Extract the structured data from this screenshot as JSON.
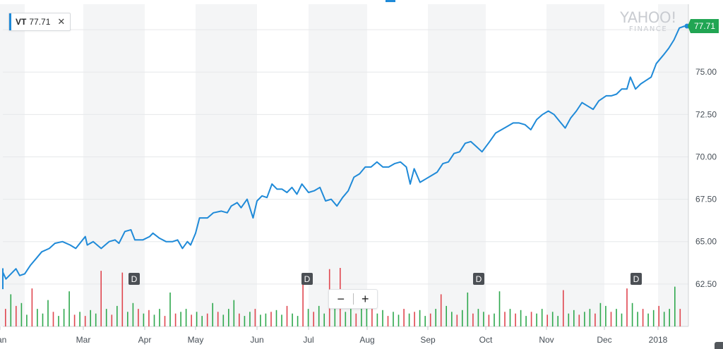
{
  "tooltip": {
    "symbol": "VT",
    "price": "77.71",
    "close_icon": "close-icon"
  },
  "logo": {
    "line1": "YAHOO!",
    "line2": "FINANCE"
  },
  "zoom": {
    "minus": "−",
    "plus": "+"
  },
  "colors": {
    "line": "#1f8ad8",
    "up": "#2ea84d",
    "down": "#e0464f",
    "band": "#f4f5f6",
    "grid": "#e6e8ea",
    "price_tag": "#21a553",
    "dividend": "#4b4f54"
  },
  "chart_data": {
    "type": "line",
    "series": [
      {
        "name": "VT",
        "last": 77.71
      }
    ],
    "ylim": [
      60.0,
      79.0
    ],
    "y_ticks": [
      62.5,
      65.0,
      67.5,
      70.0,
      72.5,
      75.0,
      77.71
    ],
    "y_tick_labels": [
      "62.50",
      "65.00",
      "67.50",
      "70.00",
      "72.50",
      "75.00",
      "77.71"
    ],
    "x_tick_labels": [
      "Jan",
      "Mar",
      "Apr",
      "May",
      "Jun",
      "Jul",
      "Aug",
      "Sep",
      "Oct",
      "Nov",
      "Dec",
      "2018"
    ],
    "dividend_markers": [
      "D",
      "D",
      "D",
      "D"
    ],
    "price_points": [
      [
        "01-03",
        62.2
      ],
      [
        "01-05",
        62.4
      ],
      [
        "01-10",
        63.4
      ],
      [
        "01-14",
        63.2
      ],
      [
        "01-17",
        62.8
      ],
      [
        "01-21",
        63.1
      ],
      [
        "01-25",
        63.4
      ],
      [
        "01-28",
        63.0
      ],
      [
        "02-01",
        63.1
      ],
      [
        "02-04",
        63.6
      ],
      [
        "02-07",
        64.0
      ],
      [
        "02-10",
        64.4
      ],
      [
        "02-14",
        64.6
      ],
      [
        "02-17",
        64.9
      ],
      [
        "02-21",
        65.0
      ],
      [
        "02-25",
        64.8
      ],
      [
        "02-28",
        64.6
      ],
      [
        "03-02",
        65.3
      ],
      [
        "03-03",
        64.8
      ],
      [
        "03-06",
        65.0
      ],
      [
        "03-10",
        64.6
      ],
      [
        "03-14",
        65.0
      ],
      [
        "03-17",
        65.1
      ],
      [
        "03-19",
        64.9
      ],
      [
        "03-22",
        65.6
      ],
      [
        "03-25",
        65.7
      ],
      [
        "03-27",
        65.1
      ],
      [
        "03-31",
        65.1
      ],
      [
        "04-04",
        65.3
      ],
      [
        "04-06",
        65.5
      ],
      [
        "04-10",
        65.2
      ],
      [
        "04-14",
        65.0
      ],
      [
        "04-18",
        65.0
      ],
      [
        "04-21",
        65.1
      ],
      [
        "04-24",
        64.6
      ],
      [
        "04-27",
        65.0
      ],
      [
        "04-29",
        64.8
      ],
      [
        "05-01",
        65.5
      ],
      [
        "05-03",
        66.4
      ],
      [
        "05-07",
        66.4
      ],
      [
        "05-10",
        66.7
      ],
      [
        "05-14",
        66.8
      ],
      [
        "05-17",
        66.7
      ],
      [
        "05-19",
        67.1
      ],
      [
        "05-22",
        67.3
      ],
      [
        "05-24",
        67.0
      ],
      [
        "05-27",
        67.5
      ],
      [
        "05-30",
        66.4
      ],
      [
        "06-01",
        67.4
      ],
      [
        "06-04",
        67.7
      ],
      [
        "06-07",
        67.6
      ],
      [
        "06-10",
        68.4
      ],
      [
        "06-13",
        68.1
      ],
      [
        "06-16",
        68.1
      ],
      [
        "06-19",
        67.9
      ],
      [
        "06-22",
        68.2
      ],
      [
        "06-25",
        67.8
      ],
      [
        "06-28",
        68.4
      ],
      [
        "07-01",
        67.9
      ],
      [
        "07-04",
        68.0
      ],
      [
        "07-07",
        68.2
      ],
      [
        "07-10",
        67.4
      ],
      [
        "07-13",
        67.5
      ],
      [
        "07-16",
        67.1
      ],
      [
        "07-19",
        67.6
      ],
      [
        "07-22",
        68.0
      ],
      [
        "07-25",
        68.8
      ],
      [
        "07-28",
        69.0
      ],
      [
        "07-31",
        69.4
      ],
      [
        "08-03",
        69.4
      ],
      [
        "08-06",
        69.7
      ],
      [
        "08-09",
        69.4
      ],
      [
        "08-12",
        69.4
      ],
      [
        "08-15",
        69.6
      ],
      [
        "08-18",
        69.7
      ],
      [
        "08-21",
        69.4
      ],
      [
        "08-23",
        68.4
      ],
      [
        "08-25",
        69.3
      ],
      [
        "08-28",
        68.5
      ],
      [
        "08-31",
        68.7
      ],
      [
        "09-03",
        68.9
      ],
      [
        "09-06",
        69.1
      ],
      [
        "09-09",
        69.6
      ],
      [
        "09-12",
        69.7
      ],
      [
        "09-15",
        70.2
      ],
      [
        "09-18",
        70.3
      ],
      [
        "09-21",
        70.8
      ],
      [
        "09-24",
        70.9
      ],
      [
        "09-27",
        70.6
      ],
      [
        "09-30",
        70.3
      ],
      [
        "10-03",
        70.9
      ],
      [
        "10-06",
        71.4
      ],
      [
        "10-09",
        71.6
      ],
      [
        "10-12",
        71.8
      ],
      [
        "10-15",
        72.0
      ],
      [
        "10-18",
        72.0
      ],
      [
        "10-21",
        71.9
      ],
      [
        "10-24",
        71.6
      ],
      [
        "10-27",
        72.2
      ],
      [
        "10-30",
        72.5
      ],
      [
        "11-02",
        72.7
      ],
      [
        "11-05",
        72.5
      ],
      [
        "11-08",
        72.1
      ],
      [
        "11-11",
        71.7
      ],
      [
        "11-14",
        72.3
      ],
      [
        "11-17",
        72.7
      ],
      [
        "11-20",
        73.2
      ],
      [
        "11-23",
        73.0
      ],
      [
        "11-26",
        72.8
      ],
      [
        "11-29",
        73.3
      ],
      [
        "12-02",
        73.6
      ],
      [
        "12-05",
        73.6
      ],
      [
        "12-08",
        73.7
      ],
      [
        "12-11",
        74.0
      ],
      [
        "12-14",
        74.0
      ],
      [
        "12-16",
        74.7
      ],
      [
        "12-19",
        74.0
      ],
      [
        "12-22",
        74.3
      ],
      [
        "12-25",
        74.5
      ],
      [
        "12-28",
        74.7
      ],
      [
        "12-31",
        75.5
      ],
      [
        "01-04",
        76.0
      ],
      [
        "01-07",
        76.4
      ],
      [
        "01-10",
        76.9
      ],
      [
        "01-13",
        77.6
      ],
      [
        "01-16",
        77.71
      ]
    ],
    "volume_bars": [
      {
        "up": false,
        "v": 0.3
      },
      {
        "up": true,
        "v": 0.55
      },
      {
        "up": false,
        "v": 0.35
      },
      {
        "up": true,
        "v": 0.4
      },
      {
        "up": true,
        "v": 0.2
      },
      {
        "up": false,
        "v": 0.65
      },
      {
        "up": true,
        "v": 0.3
      },
      {
        "up": true,
        "v": 0.22
      },
      {
        "up": true,
        "v": 0.45
      },
      {
        "up": false,
        "v": 0.25
      },
      {
        "up": true,
        "v": 0.18
      },
      {
        "up": true,
        "v": 0.3
      },
      {
        "up": true,
        "v": 0.6
      },
      {
        "up": false,
        "v": 0.2
      },
      {
        "up": true,
        "v": 0.25
      },
      {
        "up": false,
        "v": 0.18
      },
      {
        "up": true,
        "v": 0.28
      },
      {
        "up": true,
        "v": 0.22
      },
      {
        "up": false,
        "v": 0.95
      },
      {
        "up": true,
        "v": 0.3
      },
      {
        "up": false,
        "v": 0.2
      },
      {
        "up": true,
        "v": 0.35
      },
      {
        "up": false,
        "v": 0.92
      },
      {
        "up": true,
        "v": 0.25
      },
      {
        "up": true,
        "v": 0.4
      },
      {
        "up": false,
        "v": 0.3
      },
      {
        "up": true,
        "v": 0.22
      },
      {
        "up": false,
        "v": 0.28
      },
      {
        "up": true,
        "v": 0.2
      },
      {
        "up": true,
        "v": 0.3
      },
      {
        "up": false,
        "v": 0.18
      },
      {
        "up": true,
        "v": 0.58
      },
      {
        "up": false,
        "v": 0.22
      },
      {
        "up": true,
        "v": 0.25
      },
      {
        "up": true,
        "v": 0.3
      },
      {
        "up": false,
        "v": 0.2
      },
      {
        "up": true,
        "v": 0.25
      },
      {
        "up": true,
        "v": 0.18
      },
      {
        "up": false,
        "v": 0.22
      },
      {
        "up": true,
        "v": 0.4
      },
      {
        "up": false,
        "v": 0.25
      },
      {
        "up": true,
        "v": 0.2
      },
      {
        "up": true,
        "v": 0.3
      },
      {
        "up": true,
        "v": 0.45
      },
      {
        "up": false,
        "v": 0.22
      },
      {
        "up": true,
        "v": 0.18
      },
      {
        "up": true,
        "v": 0.25
      },
      {
        "up": false,
        "v": 0.3
      },
      {
        "up": true,
        "v": 0.2
      },
      {
        "up": true,
        "v": 0.22
      },
      {
        "up": false,
        "v": 0.25
      },
      {
        "up": true,
        "v": 0.28
      },
      {
        "up": true,
        "v": 0.2
      },
      {
        "up": false,
        "v": 0.35
      },
      {
        "up": true,
        "v": 0.22
      },
      {
        "up": true,
        "v": 0.18
      },
      {
        "up": false,
        "v": 0.9
      },
      {
        "up": true,
        "v": 0.3
      },
      {
        "up": false,
        "v": 0.25
      },
      {
        "up": true,
        "v": 0.35
      },
      {
        "up": true,
        "v": 0.22
      },
      {
        "up": false,
        "v": 0.98
      },
      {
        "up": true,
        "v": 0.4
      },
      {
        "up": false,
        "v": 1.0
      },
      {
        "up": true,
        "v": 0.25
      },
      {
        "up": true,
        "v": 0.3
      },
      {
        "up": false,
        "v": 0.22
      },
      {
        "up": true,
        "v": 0.35
      },
      {
        "up": true,
        "v": 0.6
      },
      {
        "up": false,
        "v": 0.3
      },
      {
        "up": true,
        "v": 0.22
      },
      {
        "up": true,
        "v": 0.28
      },
      {
        "up": false,
        "v": 0.18
      },
      {
        "up": true,
        "v": 0.25
      },
      {
        "up": true,
        "v": 0.2
      },
      {
        "up": false,
        "v": 0.3
      },
      {
        "up": true,
        "v": 0.22
      },
      {
        "up": false,
        "v": 0.25
      },
      {
        "up": true,
        "v": 0.28
      },
      {
        "up": true,
        "v": 0.18
      },
      {
        "up": false,
        "v": 0.22
      },
      {
        "up": true,
        "v": 0.3
      },
      {
        "up": false,
        "v": 0.55
      },
      {
        "up": true,
        "v": 0.35
      },
      {
        "up": true,
        "v": 0.25
      },
      {
        "up": false,
        "v": 0.2
      },
      {
        "up": true,
        "v": 0.28
      },
      {
        "up": true,
        "v": 0.58
      },
      {
        "up": false,
        "v": 0.22
      },
      {
        "up": true,
        "v": 0.3
      },
      {
        "up": true,
        "v": 0.25
      },
      {
        "up": false,
        "v": 0.2
      },
      {
        "up": true,
        "v": 0.22
      },
      {
        "up": true,
        "v": 0.6
      },
      {
        "up": false,
        "v": 0.25
      },
      {
        "up": true,
        "v": 0.3
      },
      {
        "up": false,
        "v": 0.22
      },
      {
        "up": true,
        "v": 0.28
      },
      {
        "up": true,
        "v": 0.18
      },
      {
        "up": false,
        "v": 0.25
      },
      {
        "up": true,
        "v": 0.22
      },
      {
        "up": true,
        "v": 0.3
      },
      {
        "up": false,
        "v": 0.2
      },
      {
        "up": true,
        "v": 0.25
      },
      {
        "up": true,
        "v": 0.18
      },
      {
        "up": false,
        "v": 0.62
      },
      {
        "up": true,
        "v": 0.22
      },
      {
        "up": true,
        "v": 0.28
      },
      {
        "up": false,
        "v": 0.2
      },
      {
        "up": true,
        "v": 0.25
      },
      {
        "up": true,
        "v": 0.3
      },
      {
        "up": false,
        "v": 0.22
      },
      {
        "up": true,
        "v": 0.4
      },
      {
        "up": true,
        "v": 0.35
      },
      {
        "up": false,
        "v": 0.25
      },
      {
        "up": true,
        "v": 0.3
      },
      {
        "up": true,
        "v": 0.22
      },
      {
        "up": false,
        "v": 0.65
      },
      {
        "up": true,
        "v": 0.4
      },
      {
        "up": true,
        "v": 0.25
      },
      {
        "up": false,
        "v": 0.3
      },
      {
        "up": true,
        "v": 0.22
      },
      {
        "up": true,
        "v": 0.28
      },
      {
        "up": false,
        "v": 0.35
      },
      {
        "up": true,
        "v": 0.25
      },
      {
        "up": true,
        "v": 0.3
      },
      {
        "up": true,
        "v": 0.68
      },
      {
        "up": false,
        "v": 0.3
      }
    ]
  }
}
